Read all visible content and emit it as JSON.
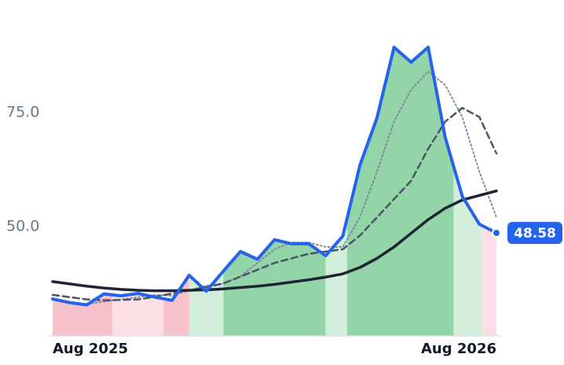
{
  "chart_data": {
    "type": "line",
    "x": [
      0,
      2,
      4,
      6,
      8,
      10,
      12,
      14,
      16,
      18,
      20,
      22,
      24,
      26,
      28,
      30,
      32,
      34,
      36,
      38,
      40,
      42,
      44,
      46,
      48,
      50,
      52
    ],
    "xlim": [
      0,
      52
    ],
    "xticks": [
      {
        "value": 0,
        "label": "Aug 2025"
      },
      {
        "value": 52,
        "label": "Aug 2026"
      }
    ],
    "ylim": [
      26,
      93
    ],
    "yticks": [
      {
        "value": 50,
        "label": "50.0"
      },
      {
        "value": 75,
        "label": "75.0"
      }
    ],
    "bands": [
      {
        "start": 0,
        "end": 7,
        "color": "#f7c1cb"
      },
      {
        "start": 7,
        "end": 13,
        "color": "#fde0e5"
      },
      {
        "start": 13,
        "end": 16,
        "color": "#f7c1cb"
      },
      {
        "start": 16,
        "end": 20,
        "color": "#d4eedc"
      },
      {
        "start": 20,
        "end": 32,
        "color": "#93d5a8"
      },
      {
        "start": 32,
        "end": 34.5,
        "color": "#d4eedc"
      },
      {
        "start": 34.5,
        "end": 47,
        "color": "#93d5a8"
      },
      {
        "start": 47,
        "end": 50.3,
        "color": "#d4eedc"
      },
      {
        "start": 50.3,
        "end": 52,
        "color": "#fde0e5"
      }
    ],
    "series": [
      {
        "color": "#2563eb",
        "width": 4,
        "dash": "none",
        "values": [
          34.1,
          33.3,
          32.8,
          35.2,
          34.8,
          35.3,
          34.5,
          33.8,
          39.3,
          35.8,
          40.2,
          44.5,
          42.8,
          47.1,
          46.2,
          46.2,
          43.6,
          47.9,
          63.4,
          73.8,
          89.3,
          86,
          89.3,
          69.5,
          56.6,
          50.5,
          48.58
        ]
      },
      {
        "color": "#1e2433",
        "width": 3.5,
        "dash": "none",
        "values": [
          37.9,
          37.4,
          36.9,
          36.5,
          36.2,
          36,
          35.9,
          35.9,
          36,
          36.1,
          36.3,
          36.6,
          36.9,
          37.3,
          37.8,
          38.3,
          38.9,
          39.6,
          41,
          43,
          45.5,
          48.5,
          51.5,
          54,
          55.8,
          56.8,
          57.8
        ]
      },
      {
        "color": "#4a5568",
        "width": 2.5,
        "dash": "8 5",
        "values": [
          35,
          34.5,
          34,
          33.8,
          33.9,
          34,
          34.6,
          35.3,
          36,
          36.7,
          37.5,
          39,
          40.5,
          42,
          43,
          44,
          44.5,
          45,
          48,
          52,
          56,
          60,
          67,
          73,
          76,
          74,
          66
        ]
      },
      {
        "color": "#7a8699",
        "width": 1.8,
        "dash": "2 3",
        "values": [
          34,
          33.5,
          33,
          33.5,
          34,
          34.5,
          35,
          34.8,
          36,
          37,
          37.5,
          39,
          42,
          45,
          46.5,
          46.5,
          45.5,
          45.5,
          52,
          62,
          73,
          80,
          84,
          81,
          74,
          62,
          52
        ]
      }
    ]
  }
}
